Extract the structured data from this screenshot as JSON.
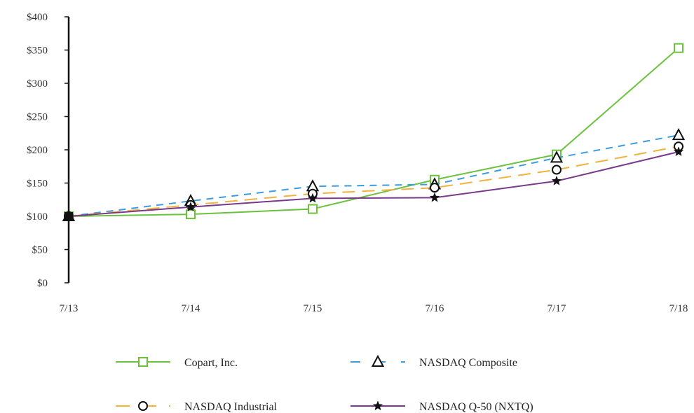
{
  "chart_data": {
    "type": "line",
    "title": "",
    "xlabel": "",
    "ylabel": "",
    "categories": [
      "7/13",
      "7/14",
      "7/15",
      "7/16",
      "7/17",
      "7/18"
    ],
    "ylim": [
      0,
      400
    ],
    "yticks": [
      "$0",
      "$50",
      "$100",
      "$150",
      "$200",
      "$250",
      "$300",
      "$350",
      "$400"
    ],
    "grid": false,
    "legend_position": "bottom",
    "series": [
      {
        "name": "Copart, Inc.",
        "values": [
          100,
          103,
          111,
          155,
          193,
          353
        ],
        "color": "#6cc13f",
        "dash": "solid",
        "marker": "square"
      },
      {
        "name": "NASDAQ Composite",
        "values": [
          100,
          123,
          145,
          148,
          188,
          222
        ],
        "color": "#3d9be0",
        "dash": "dashed",
        "marker": "triangle"
      },
      {
        "name": "NASDAQ Industrial",
        "values": [
          100,
          117,
          134,
          143,
          170,
          205
        ],
        "color": "#f2b23c",
        "dash": "long-dashed",
        "marker": "circle"
      },
      {
        "name": "NASDAQ Q-50 (NXTQ)",
        "values": [
          100,
          114,
          127,
          128,
          153,
          197
        ],
        "color": "#7a3a8c",
        "dash": "solid",
        "marker": "star"
      }
    ]
  }
}
